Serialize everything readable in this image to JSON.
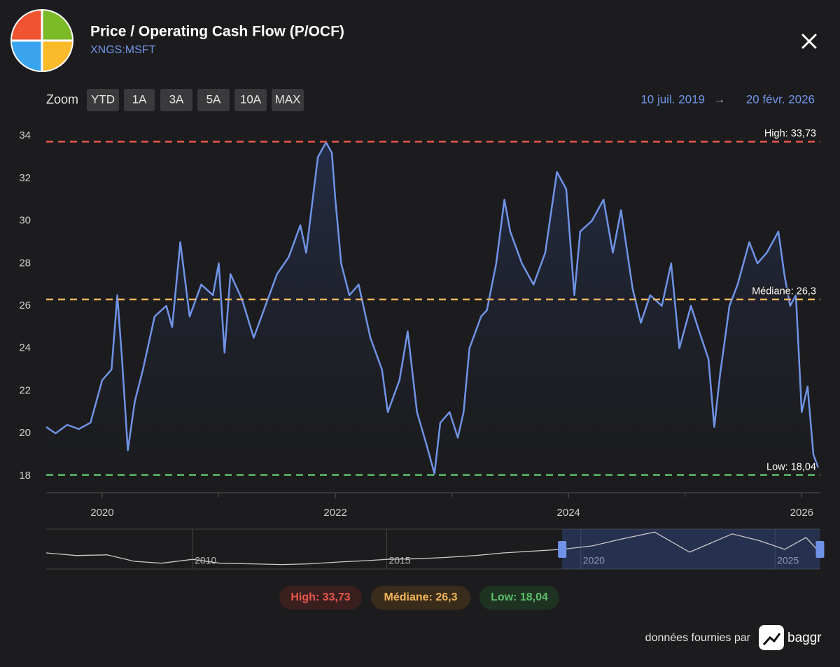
{
  "header": {
    "title": "Price / Operating Cash Flow (P/OCF)",
    "subtitle": "XNGS:MSFT"
  },
  "zoom": {
    "label": "Zoom",
    "buttons": [
      "YTD",
      "1A",
      "3A",
      "5A",
      "10A",
      "MAX"
    ]
  },
  "range": {
    "from": "10 juil. 2019",
    "arrow": "→",
    "to": "20 févr. 2026"
  },
  "chart_data": {
    "type": "line",
    "xlim": [
      2019.52,
      2026.16
    ],
    "xticks": [
      2020,
      2022,
      2024,
      2026
    ],
    "x_minor_ticks": [
      2021,
      2023,
      2025
    ],
    "ylim": [
      17.5,
      34.5
    ],
    "yticks": [
      18,
      20,
      22,
      24,
      26,
      28,
      30,
      32,
      34
    ],
    "series": [
      {
        "color": "#6f93e6",
        "x": [
          2019.52,
          2019.6,
          2019.7,
          2019.8,
          2019.9,
          2020.0,
          2020.08,
          2020.13,
          2020.17,
          2020.22,
          2020.28,
          2020.35,
          2020.45,
          2020.55,
          2020.6,
          2020.67,
          2020.75,
          2020.85,
          2020.95,
          2021.0,
          2021.05,
          2021.1,
          2021.2,
          2021.3,
          2021.4,
          2021.5,
          2021.6,
          2021.7,
          2021.75,
          2021.85,
          2021.92,
          2021.97,
          2022.0,
          2022.05,
          2022.12,
          2022.2,
          2022.3,
          2022.4,
          2022.45,
          2022.55,
          2022.62,
          2022.7,
          2022.78,
          2022.85,
          2022.9,
          2022.98,
          2023.05,
          2023.1,
          2023.15,
          2023.25,
          2023.3,
          2023.38,
          2023.45,
          2023.5,
          2023.6,
          2023.7,
          2023.8,
          2023.9,
          2023.98,
          2024.05,
          2024.1,
          2024.2,
          2024.3,
          2024.38,
          2024.45,
          2024.55,
          2024.62,
          2024.7,
          2024.8,
          2024.88,
          2024.95,
          2025.05,
          2025.12,
          2025.2,
          2025.25,
          2025.3,
          2025.38,
          2025.45,
          2025.55,
          2025.62,
          2025.7,
          2025.8,
          2025.85,
          2025.9,
          2025.95,
          2026.0,
          2026.05,
          2026.1,
          2026.14
        ],
        "values": [
          20.3,
          20.0,
          20.4,
          20.2,
          20.5,
          22.5,
          23.0,
          26.5,
          23.5,
          19.2,
          21.5,
          23.0,
          25.5,
          26.0,
          25.0,
          29.0,
          25.5,
          27.0,
          26.5,
          28.0,
          23.8,
          27.5,
          26.3,
          24.5,
          26.0,
          27.5,
          28.3,
          29.8,
          28.5,
          33.0,
          33.7,
          33.2,
          31.0,
          28.0,
          26.5,
          27.0,
          24.5,
          23.0,
          21.0,
          22.5,
          24.8,
          21.0,
          19.5,
          18.1,
          20.5,
          21.0,
          19.8,
          21.0,
          24.0,
          25.5,
          25.8,
          28.0,
          31.0,
          29.5,
          28.0,
          27.0,
          28.5,
          32.3,
          31.5,
          26.5,
          29.5,
          30.0,
          31.0,
          28.5,
          30.5,
          26.8,
          25.2,
          26.5,
          26.0,
          28.0,
          24.0,
          26.0,
          24.8,
          23.5,
          20.3,
          22.8,
          26.0,
          27.0,
          29.0,
          28.0,
          28.5,
          29.5,
          27.5,
          26.0,
          26.5,
          21.0,
          22.2,
          19.0,
          18.4
        ]
      }
    ],
    "reference_lines": [
      {
        "value": 33.73,
        "label": "High: 33,73",
        "color": "#e8574a"
      },
      {
        "value": 26.3,
        "label": "Médiane: 26,3",
        "color": "#f0b45a"
      },
      {
        "value": 18.04,
        "label": "Low: 18,04",
        "color": "#5cbf6a"
      }
    ]
  },
  "navigator": {
    "xlim": [
      2006.23,
      2026.17
    ],
    "ylim": [
      5,
      36
    ],
    "xticks": [
      2010,
      2015,
      2020,
      2025
    ],
    "color": "#c8c8c8",
    "x": [
      2006.23,
      2007.0,
      2007.8,
      2008.5,
      2009.2,
      2010.0,
      2010.7,
      2011.5,
      2012.3,
      2013.0,
      2013.8,
      2014.5,
      2015.0,
      2015.8,
      2016.5,
      2017.3,
      2018.0,
      2018.8,
      2019.52,
      2020.3,
      2021.0,
      2021.9,
      2022.8,
      2023.9,
      2024.6,
      2025.25,
      2025.8,
      2026.14
    ],
    "values": [
      17.5,
      15.5,
      16,
      11,
      9.5,
      12.5,
      9.5,
      9,
      8.5,
      9,
      10.5,
      11.5,
      12.5,
      13,
      14,
      15.5,
      17.5,
      19,
      20.3,
      23,
      28,
      33.7,
      18.1,
      32.3,
      27,
      20.3,
      29.5,
      18.4
    ]
  },
  "footer": {
    "text": "données fournies par",
    "brand": "baggr"
  }
}
